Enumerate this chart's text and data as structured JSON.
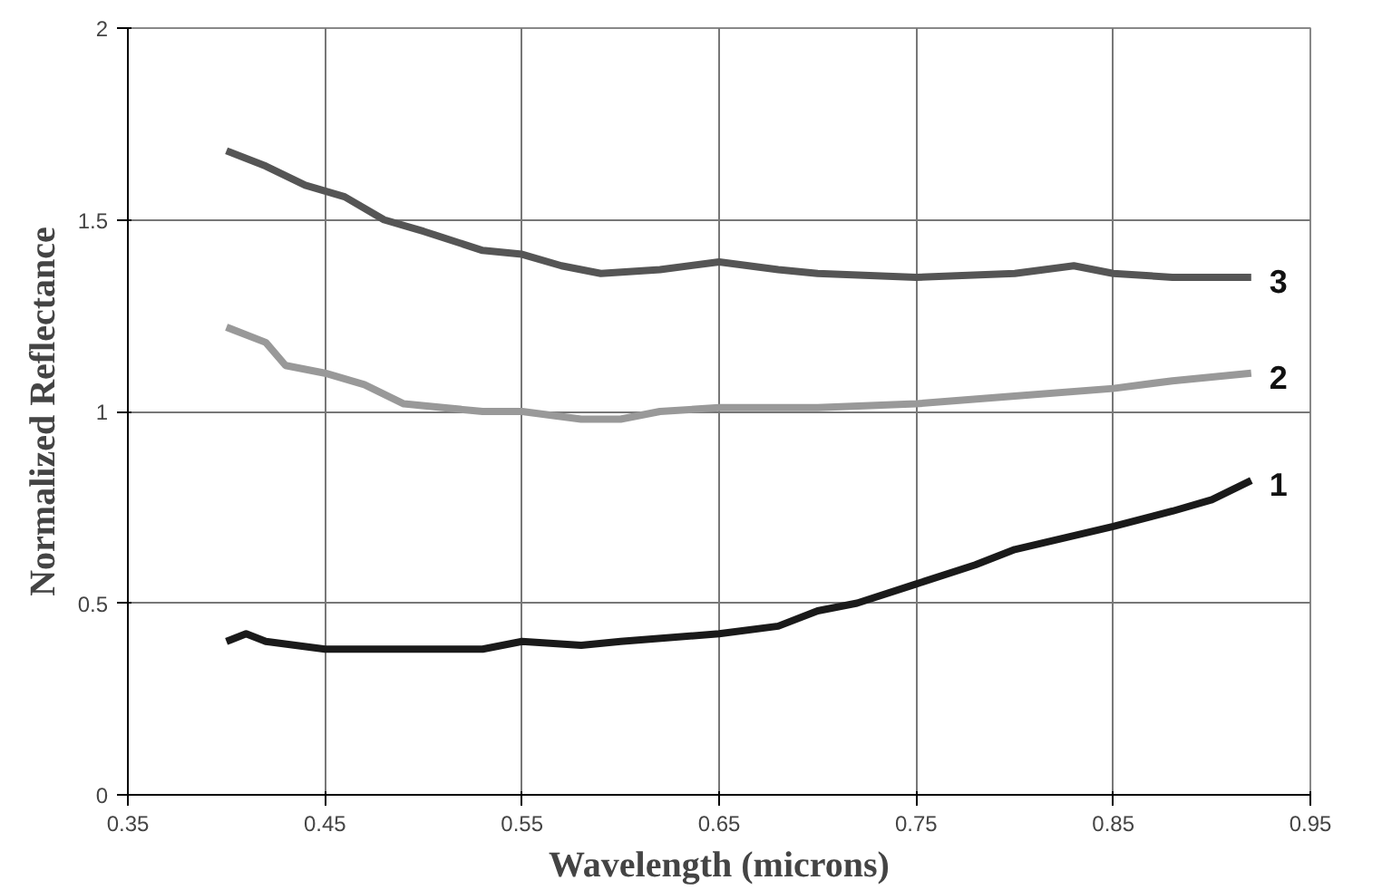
{
  "chart_data": {
    "type": "line",
    "xlabel": "Wavelength (microns)",
    "ylabel": "Normalized Reflectance",
    "xlim": [
      0.35,
      0.95
    ],
    "xticks": [
      0.35,
      0.45,
      0.55,
      0.65,
      0.75,
      0.85,
      0.95
    ],
    "ylim": [
      0,
      2
    ],
    "yticks": [
      0,
      0.5,
      1,
      1.5,
      2
    ],
    "grid": true,
    "marker": "none",
    "line_style": "solid",
    "series": [
      {
        "name": "1",
        "color": "#1a1a1a",
        "x": [
          0.4,
          0.41,
          0.42,
          0.45,
          0.5,
          0.53,
          0.55,
          0.58,
          0.6,
          0.65,
          0.68,
          0.7,
          0.72,
          0.75,
          0.78,
          0.8,
          0.85,
          0.88,
          0.9,
          0.92
        ],
        "values": [
          0.4,
          0.42,
          0.4,
          0.38,
          0.38,
          0.38,
          0.4,
          0.39,
          0.4,
          0.42,
          0.44,
          0.48,
          0.5,
          0.55,
          0.6,
          0.64,
          0.7,
          0.74,
          0.77,
          0.82
        ]
      },
      {
        "name": "2",
        "color": "#999999",
        "x": [
          0.4,
          0.42,
          0.43,
          0.45,
          0.47,
          0.49,
          0.51,
          0.53,
          0.55,
          0.58,
          0.6,
          0.62,
          0.65,
          0.7,
          0.75,
          0.8,
          0.85,
          0.88,
          0.9,
          0.92
        ],
        "values": [
          1.22,
          1.18,
          1.12,
          1.1,
          1.07,
          1.02,
          1.01,
          1.0,
          1.0,
          0.98,
          0.98,
          1.0,
          1.01,
          1.01,
          1.02,
          1.04,
          1.06,
          1.08,
          1.09,
          1.1
        ]
      },
      {
        "name": "3",
        "color": "#555555",
        "x": [
          0.4,
          0.42,
          0.44,
          0.46,
          0.48,
          0.5,
          0.53,
          0.55,
          0.57,
          0.59,
          0.62,
          0.65,
          0.68,
          0.7,
          0.75,
          0.8,
          0.83,
          0.85,
          0.88,
          0.92
        ],
        "values": [
          1.68,
          1.64,
          1.59,
          1.56,
          1.5,
          1.47,
          1.42,
          1.41,
          1.38,
          1.36,
          1.37,
          1.39,
          1.37,
          1.36,
          1.35,
          1.36,
          1.38,
          1.36,
          1.35,
          1.35
        ]
      }
    ]
  }
}
